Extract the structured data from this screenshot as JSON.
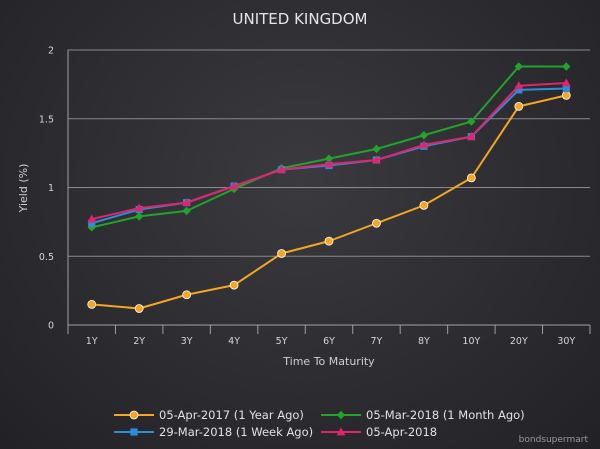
{
  "chart_data": {
    "type": "line",
    "title": "UNITED KINGDOM",
    "xlabel": "Time To Maturity",
    "ylabel": "Yield (%)",
    "categories": [
      "1Y",
      "2Y",
      "3Y",
      "4Y",
      "5Y",
      "6Y",
      "7Y",
      "8Y",
      "10Y",
      "20Y",
      "30Y"
    ],
    "ylim": [
      0,
      2
    ],
    "yticks": [
      "0",
      "0.5",
      "1",
      "1.5",
      "2"
    ],
    "grid": true,
    "legend_position": "bottom",
    "series": [
      {
        "name": "05-Apr-2017 (1 Year Ago)",
        "color": "#f5a623",
        "marker": "circle",
        "values": [
          0.15,
          0.12,
          0.22,
          0.29,
          0.52,
          0.61,
          0.74,
          0.87,
          1.07,
          1.59,
          1.67
        ]
      },
      {
        "name": "05-Mar-2018 (1 Month Ago)",
        "color": "#22a32a",
        "marker": "diamond",
        "values": [
          0.71,
          0.79,
          0.83,
          0.99,
          1.14,
          1.21,
          1.28,
          1.38,
          1.48,
          1.88,
          1.88
        ]
      },
      {
        "name": "29-Mar-2018 (1 Week Ago)",
        "color": "#2a8fd6",
        "marker": "square",
        "values": [
          0.74,
          0.84,
          0.89,
          1.01,
          1.13,
          1.16,
          1.2,
          1.3,
          1.37,
          1.71,
          1.72
        ]
      },
      {
        "name": "05-Apr-2018",
        "color": "#e0246e",
        "marker": "triangle",
        "values": [
          0.77,
          0.85,
          0.89,
          1.01,
          1.13,
          1.17,
          1.2,
          1.31,
          1.37,
          1.74,
          1.76
        ]
      }
    ]
  },
  "credit": "bondsupermart"
}
